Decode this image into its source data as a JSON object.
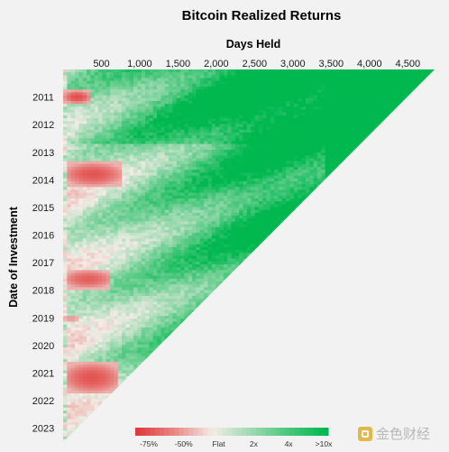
{
  "chart_data": {
    "type": "heatmap",
    "title": "Bitcoin Realized Returns",
    "xlabel": "Days Held",
    "ylabel": "Date of Investment",
    "x_ticks": [
      500,
      1000,
      1500,
      2000,
      2500,
      3000,
      3500,
      4000,
      4500
    ],
    "x_tick_labels": [
      "500",
      "1,000",
      "1,500",
      "2,000",
      "2,500",
      "3,000",
      "3,500",
      "4,000",
      "4,500"
    ],
    "xlim": [
      0,
      4850
    ],
    "y_ticks": [
      "2011",
      "2012",
      "2013",
      "2014",
      "2015",
      "2016",
      "2017",
      "2018",
      "2019",
      "2020",
      "2021",
      "2022",
      "2023"
    ],
    "ylim": [
      "2010-07",
      "2024-01"
    ],
    "legend": {
      "labels": [
        "-75%",
        "-50%",
        "Flat",
        "2x",
        "4x",
        ">10x"
      ],
      "colors": [
        "#e04848",
        "#eb8c8c",
        "#f5e3df",
        "#a9dfbc",
        "#52c684",
        "#00b84f"
      ]
    },
    "color_scale": {
      "loss_strong": "#e03a3a",
      "flat": "#f2ece6",
      "gain_strong": "#00b84f"
    },
    "loss_regions": [
      {
        "invest_start": 2011.25,
        "invest_end": 2011.75,
        "days_min": 20,
        "days_max": 350,
        "intensity": 0.85
      },
      {
        "invest_start": 2013.85,
        "invest_end": 2014.75,
        "days_min": 40,
        "days_max": 750,
        "intensity": 0.8
      },
      {
        "invest_start": 2017.75,
        "invest_end": 2018.45,
        "days_min": 30,
        "days_max": 620,
        "intensity": 0.75
      },
      {
        "invest_start": 2019.4,
        "invest_end": 2019.65,
        "days_min": 10,
        "days_max": 200,
        "intensity": 0.45
      },
      {
        "invest_start": 2021.1,
        "invest_end": 2022.25,
        "days_min": 30,
        "days_max": 720,
        "intensity": 0.8
      }
    ]
  },
  "watermark": "金色财经"
}
